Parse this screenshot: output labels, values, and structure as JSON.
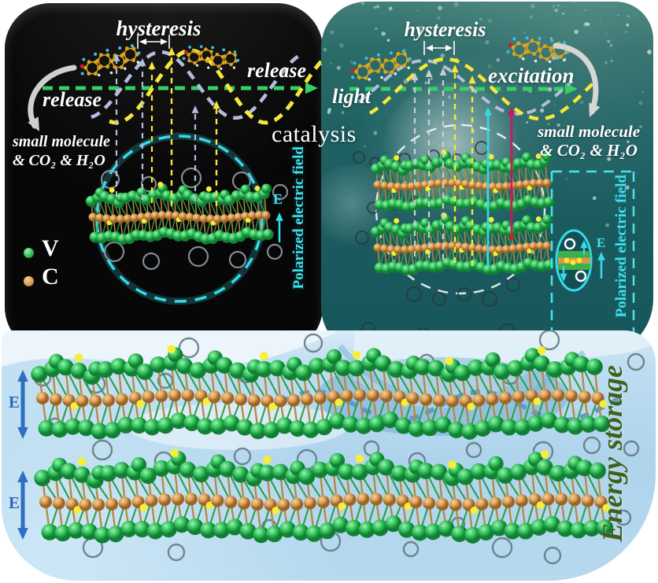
{
  "figure": {
    "catalysis_label": "catalysis"
  },
  "left_panel": {
    "hysteresis": "hysteresis",
    "release_left": "release",
    "release_right": "release",
    "small_molecule_line1": "small molecule",
    "small_molecule_line2": "& CO₂ & H₂O",
    "legend": {
      "v_label": "V",
      "c_label": "C"
    },
    "field_symbol": "E",
    "field_label": "Polarized electric field"
  },
  "right_panel": {
    "hysteresis": "hysteresis",
    "light_label": "light",
    "excitation_label": "excitation",
    "small_molecule_line1": "small molecule",
    "small_molecule_line2": "& CO₂ & H₂O",
    "field_symbol": "E",
    "schematic_field_symbol": "E",
    "field_label": "Polarized electric field"
  },
  "bottom_panel": {
    "field_symbol_top": "E",
    "field_symbol_bottom": "E",
    "energy_storage_label": "Energy storage"
  },
  "colors": {
    "axis_green": "#35d166",
    "dash_yellow": "#f5e73a",
    "dash_lavender": "#b3bedd",
    "dash_gray": "#c9ced6",
    "cyan_accent": "#36dbe9",
    "crimson_arrow": "#d4145a",
    "white": "#f2f5f7",
    "sphere_green": "#2fbf57",
    "sphere_orange": "#db9c52",
    "dot_yellow": "#f7ee35",
    "field_arrow_blue": "#2e6fc2",
    "bubble_gray": "#98a2ab",
    "bubble_dark": "#27393f",
    "bubble_water": "#62747f",
    "gray_arrow": "#cfcfcf",
    "molecule_orange": "#d9a51e",
    "molecule_cyan": "#41b9e8",
    "molecule_red": "#cc2222"
  }
}
